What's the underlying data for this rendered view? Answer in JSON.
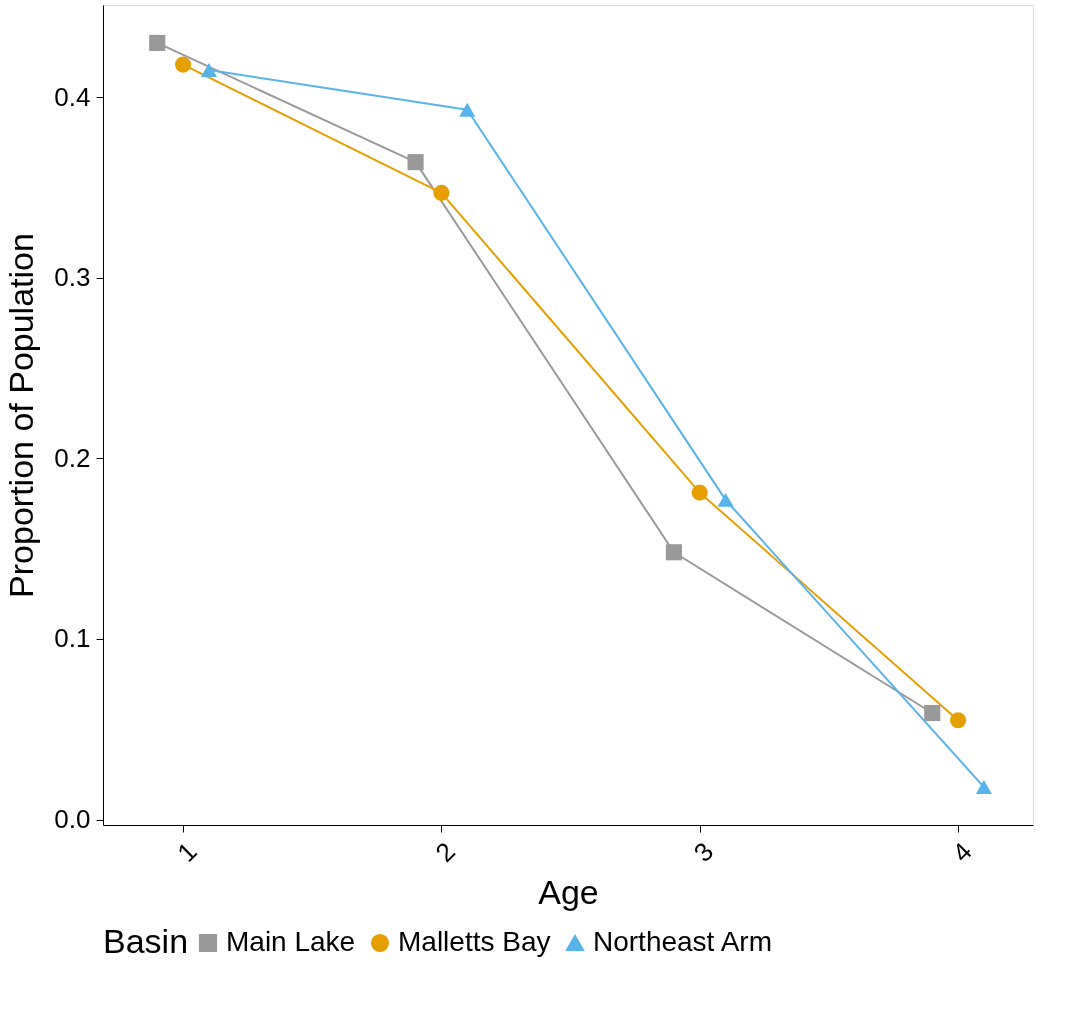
{
  "chart_data": {
    "type": "line",
    "xlabel": "Age",
    "ylabel": "Proportion of Population",
    "legend_title": "Basin",
    "legend": "bottom",
    "grid": false,
    "xlim": [
      0.69,
      4.29
    ],
    "xticks": [
      1,
      2,
      3,
      4
    ],
    "ylim": [
      -0.003,
      0.451
    ],
    "yticks": [
      {
        "value": 0,
        "label": "0.0"
      },
      0.1,
      0.2,
      0.3,
      0.4
    ],
    "series": [
      {
        "name": "Main Lake",
        "color": "#999999",
        "marker": "square",
        "x": [
          0.9,
          1.9,
          2.9,
          3.9
        ],
        "values": [
          0.43,
          0.364,
          0.148,
          0.059
        ]
      },
      {
        "name": "Malletts Bay",
        "color": "#e69f00",
        "marker": "circle",
        "x": [
          1,
          2,
          3,
          4
        ],
        "values": [
          0.418,
          0.347,
          0.181,
          0.055
        ]
      },
      {
        "name": "Northeast Arm",
        "color": "#56b4e9",
        "marker": "triangle",
        "x": [
          1.1,
          2.1,
          3.1,
          4.1
        ],
        "values": [
          0.415,
          0.393,
          0.177,
          0.018
        ]
      }
    ]
  }
}
